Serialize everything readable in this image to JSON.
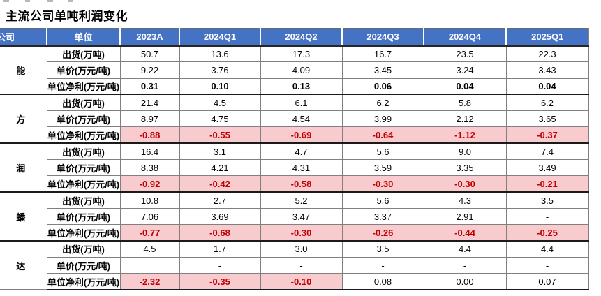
{
  "page": {
    "title": "主流公司单吨利润变化"
  },
  "colors": {
    "header_bg": "#4472C4",
    "header_text": "#FFFFFF",
    "loss_bg": "#F8CBCE",
    "loss_text": "#C00000",
    "grid_line": "#808080",
    "group_line": "#1A1A1A"
  },
  "table": {
    "header": [
      "公司",
      "单位",
      "2023A",
      "2024Q1",
      "2024Q2",
      "2024Q3",
      "2024Q4",
      "2025Q1"
    ],
    "groups": [
      {
        "company_fragment": "能",
        "rows": [
          {
            "label": "出货(万吨)",
            "values": [
              "50.7",
              "13.6",
              "17.3",
              "16.7",
              "23.5",
              "22.3"
            ],
            "cell_styles": [
              "plain",
              "plain",
              "plain",
              "plain",
              "plain",
              "plain"
            ]
          },
          {
            "label": "单价(万元/吨)",
            "values": [
              "9.22",
              "3.76",
              "4.09",
              "3.45",
              "3.24",
              "3.43"
            ],
            "cell_styles": [
              "plain",
              "plain",
              "plain",
              "plain",
              "plain",
              "plain"
            ]
          },
          {
            "label": "单位净利(万元/吨)",
            "values": [
              "0.31",
              "0.10",
              "0.13",
              "0.06",
              "0.04",
              "0.04"
            ],
            "cell_styles": [
              "bold",
              "bold",
              "bold",
              "bold",
              "bold",
              "bold"
            ]
          }
        ]
      },
      {
        "company_fragment": "方",
        "rows": [
          {
            "label": "出货(万吨)",
            "values": [
              "21.4",
              "4.5",
              "6.1",
              "6.2",
              "5.8",
              "6.2"
            ],
            "cell_styles": [
              "plain",
              "plain",
              "plain",
              "plain",
              "plain",
              "plain"
            ]
          },
          {
            "label": "单价(万元/吨)",
            "values": [
              "8.97",
              "4.75",
              "4.54",
              "3.99",
              "2.12",
              "3.65"
            ],
            "cell_styles": [
              "plain",
              "plain",
              "plain",
              "plain",
              "plain",
              "plain"
            ]
          },
          {
            "label": "单位净利(万元/吨)",
            "values": [
              "-0.88",
              "-0.55",
              "-0.69",
              "-0.64",
              "-1.12",
              "-0.37"
            ],
            "cell_styles": [
              "loss",
              "loss",
              "loss",
              "loss",
              "loss",
              "loss"
            ]
          }
        ]
      },
      {
        "company_fragment": "润",
        "rows": [
          {
            "label": "出货(万吨)",
            "values": [
              "16.4",
              "3.1",
              "4.7",
              "5.6",
              "9.0",
              "7.4"
            ],
            "cell_styles": [
              "plain",
              "plain",
              "plain",
              "plain",
              "plain",
              "plain"
            ]
          },
          {
            "label": "单价(万元/吨)",
            "values": [
              "8.38",
              "4.21",
              "4.31",
              "3.59",
              "3.35",
              "3.49"
            ],
            "cell_styles": [
              "plain",
              "plain",
              "plain",
              "plain",
              "plain",
              "plain"
            ]
          },
          {
            "label": "单位净利(万元/吨)",
            "values": [
              "-0.92",
              "-0.42",
              "-0.58",
              "-0.30",
              "-0.30",
              "-0.21"
            ],
            "cell_styles": [
              "loss",
              "loss",
              "loss",
              "loss",
              "loss",
              "loss"
            ]
          }
        ]
      },
      {
        "company_fragment": "蟠",
        "rows": [
          {
            "label": "出货(万吨)",
            "values": [
              "10.8",
              "2.7",
              "5.2",
              "5.6",
              "4.3",
              "3.5"
            ],
            "cell_styles": [
              "plain",
              "plain",
              "plain",
              "plain",
              "plain",
              "plain"
            ]
          },
          {
            "label": "单价(万元/吨)",
            "values": [
              "7.06",
              "3.69",
              "3.47",
              "3.37",
              "2.91",
              "-"
            ],
            "cell_styles": [
              "plain",
              "plain",
              "plain",
              "plain",
              "plain",
              "plain"
            ]
          },
          {
            "label": "单位净利(万元/吨)",
            "values": [
              "-0.77",
              "-0.68",
              "-0.30",
              "-0.26",
              "-0.44",
              "-0.25"
            ],
            "cell_styles": [
              "loss",
              "loss",
              "loss",
              "loss",
              "loss",
              "loss"
            ]
          }
        ]
      },
      {
        "company_fragment": "达",
        "rows": [
          {
            "label": "出货(万吨)",
            "values": [
              "4.5",
              "1.7",
              "3.0",
              "3.5",
              "4.4",
              "4.4"
            ],
            "cell_styles": [
              "plain",
              "plain",
              "plain",
              "plain",
              "plain",
              "plain"
            ]
          },
          {
            "label": "单价(万元/吨)",
            "values": [
              "",
              "-",
              "-",
              "-",
              "-",
              "-"
            ],
            "cell_styles": [
              "plain",
              "plain",
              "plain",
              "plain",
              "plain",
              "plain"
            ]
          },
          {
            "label": "单位净利(万元/吨)",
            "values": [
              "-2.32",
              "-0.35",
              "-0.10",
              "0.08",
              "0.00",
              "0.07"
            ],
            "cell_styles": [
              "loss",
              "loss",
              "loss",
              "plain",
              "plain",
              "plain"
            ]
          }
        ]
      }
    ]
  }
}
